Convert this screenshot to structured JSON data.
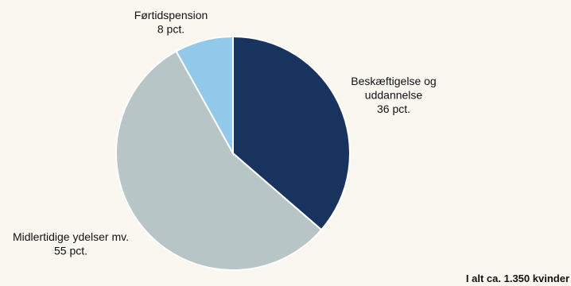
{
  "chart_data": {
    "type": "pie",
    "slices": [
      {
        "label_lines": [
          "Beskæftigelse og",
          "uddannelse"
        ],
        "value_label": "36 pct.",
        "value": 36,
        "color": "#19335f"
      },
      {
        "label_lines": [
          "Midlertidige ydelser mv."
        ],
        "value_label": "55 pct.",
        "value": 55,
        "color": "#b7c5c7"
      },
      {
        "label_lines": [
          "Førtidspension"
        ],
        "value_label": "8 pct.",
        "value": 8,
        "color": "#92c8ea"
      }
    ],
    "note": "I alt ca. 1.350 kvinder"
  }
}
